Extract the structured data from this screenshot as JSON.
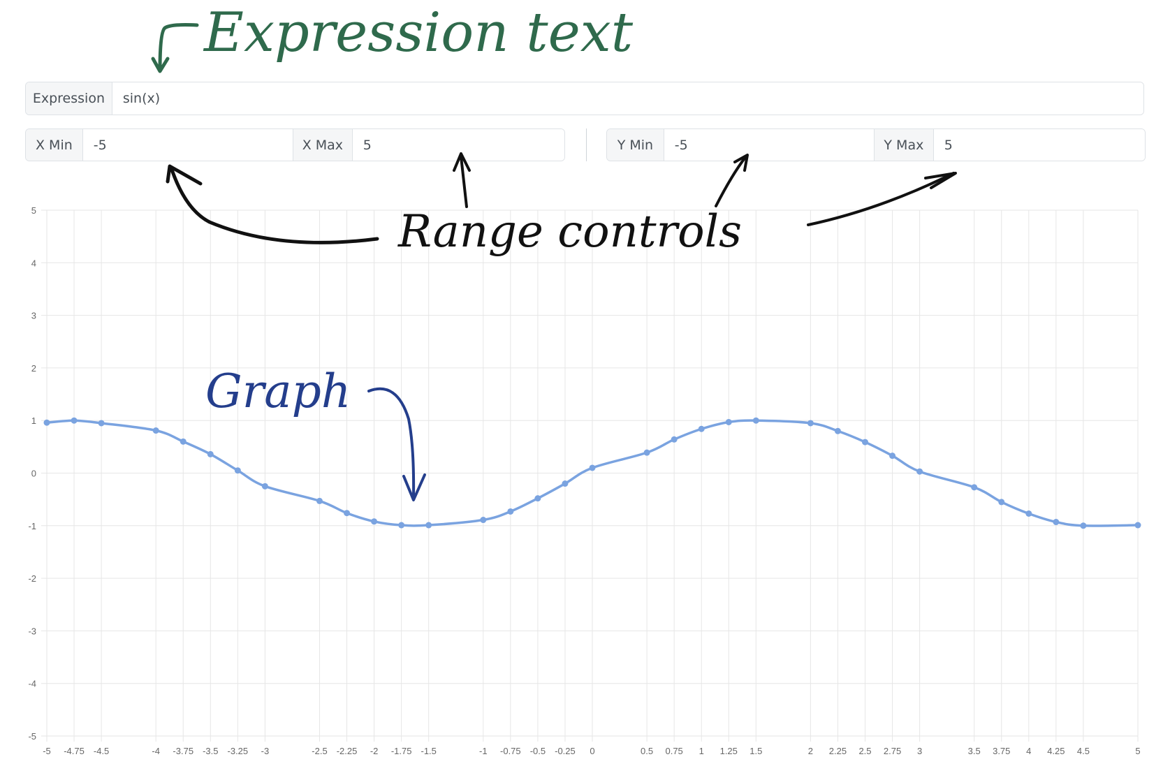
{
  "controls": {
    "expression_label": "Expression",
    "expression_value": "sin(x)",
    "xmin_label": "X Min",
    "xmin_value": "-5",
    "xmax_label": "X Max",
    "xmax_value": "5",
    "ymin_label": "Y Min",
    "ymin_value": "-5",
    "ymax_label": "Y Max",
    "ymax_value": "5"
  },
  "annotations": {
    "expression": "Expression text",
    "range": "Range controls",
    "graph": "Graph"
  },
  "colors": {
    "series": "#7aa3e0",
    "grid": "#e6e6e6",
    "tick_text": "#666666",
    "annotation_expression": "#2f6a4c",
    "annotation_range": "#111111",
    "annotation_graph": "#243e8c"
  },
  "chart_data": {
    "type": "line",
    "title": "",
    "xlabel": "",
    "ylabel": "",
    "xlim": [
      -5,
      5
    ],
    "ylim": [
      -5,
      5
    ],
    "grid": true,
    "x_tick_labels": [
      "-5",
      "-4.75",
      "-4.5",
      "-4",
      "-3.75",
      "-3.5",
      "-3.25",
      "-3",
      "-2.5",
      "-2.25",
      "-2",
      "-1.75",
      "-1.5",
      "-1",
      "-0.75",
      "-0.5",
      "-0.25",
      "0",
      "0.5",
      "0.75",
      "1",
      "1.25",
      "1.5",
      "2",
      "2.25",
      "2.5",
      "2.75",
      "3",
      "3.5",
      "3.75",
      "4",
      "4.25",
      "4.5",
      "5"
    ],
    "y_tick_labels": [
      "5",
      "4",
      "3",
      "2",
      "1",
      "0",
      "-1",
      "-2",
      "-3",
      "-4",
      "-5"
    ],
    "series": [
      {
        "x": [
          -5,
          -4.75,
          -4.5,
          -4,
          -3.75,
          -3.5,
          -3.25,
          -3,
          -2.5,
          -2.25,
          -2,
          -1.75,
          -1.5,
          -1,
          -0.75,
          -0.5,
          -0.25,
          0,
          0.5,
          0.75,
          1,
          1.25,
          1.5,
          2,
          2.25,
          2.5,
          2.75,
          3,
          3.5,
          3.75,
          4,
          4.25,
          4.5,
          5
        ],
        "y": [
          0.96,
          1.0,
          0.95,
          0.81,
          0.6,
          0.36,
          0.05,
          -0.25,
          -0.53,
          -0.76,
          -0.92,
          -0.99,
          -0.99,
          -0.89,
          -0.73,
          -0.48,
          -0.2,
          0.1,
          0.39,
          0.64,
          0.84,
          0.97,
          1.0,
          0.95,
          0.8,
          0.59,
          0.33,
          0.03,
          -0.27,
          -0.55,
          -0.77,
          -0.93,
          -1.0,
          -0.99
        ]
      }
    ]
  }
}
